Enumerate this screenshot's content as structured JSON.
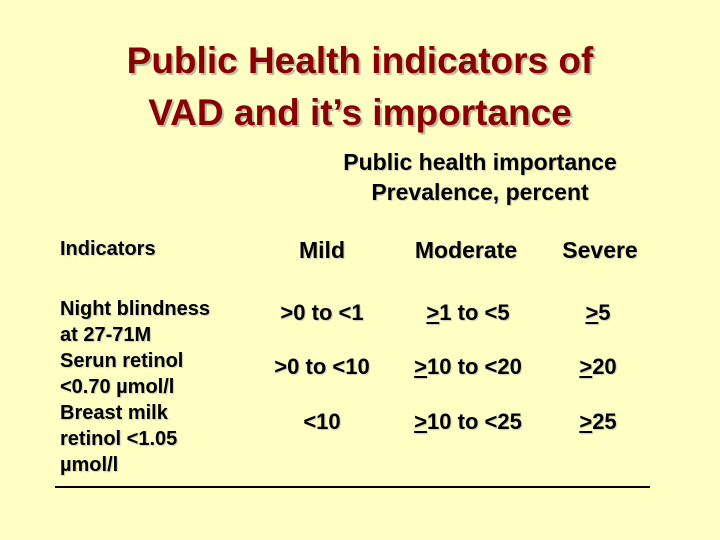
{
  "slide": {
    "title_line1": "Public Health indicators of",
    "title_line2": "VAD and it’s importance",
    "subtitle_line1": "Public health importance",
    "subtitle_line2": "Prevalence, percent"
  },
  "table": {
    "headers": {
      "indicators": "Indicators",
      "mild": "Mild",
      "moderate": "Moderate",
      "severe": "Severe"
    },
    "indicator_lines": [
      "Night blindness",
      "at 27-71M",
      "Serun retinol",
      "<0.70 µmol/l",
      "Breast milk",
      "retinol <1.05",
      "µmol/l"
    ],
    "rows": [
      {
        "mild": ">0 to <1",
        "moderate_symbol": ">",
        "moderate_rest": "1 to <5",
        "severe_symbol": ">",
        "severe_rest": "5"
      },
      {
        "mild": ">0 to <10",
        "moderate_symbol": ">",
        "moderate_rest": "10 to <20",
        "severe_symbol": ">",
        "severe_rest": "20"
      },
      {
        "mild": "<10",
        "moderate_symbol": ">",
        "moderate_rest": "10 to <25",
        "severe_symbol": ">",
        "severe_rest": "25"
      }
    ]
  }
}
